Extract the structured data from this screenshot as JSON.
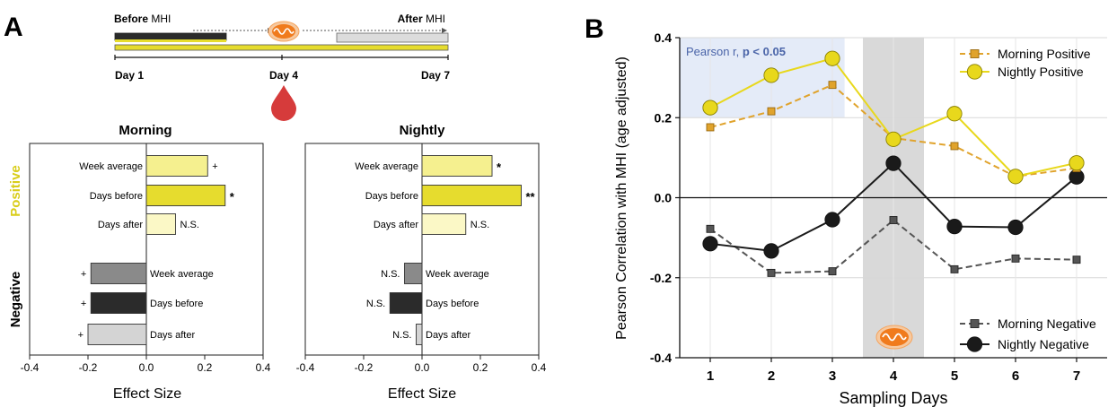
{
  "panel_a": {
    "label": "A",
    "timeline": {
      "before_word": "Before",
      "before_suffix": " MHI",
      "after_word": "After",
      "after_suffix": " MHI",
      "day_labels": [
        "Day 1",
        "Day 4",
        "Day 7"
      ]
    }
  },
  "panel_b": {
    "label": "B"
  },
  "colors": {
    "yellow_bright": "#e6dc2e",
    "yellow_mid": "#f5f08f",
    "yellow_pale": "#fbf8c6",
    "gray_mid": "#8a8a8a",
    "gray_dark": "#2b2b2b",
    "gray_light": "#d4d4d4",
    "morning_positive": "#e0a32c",
    "nightly_positive": "#e8d81c",
    "morning_negative": "#555555",
    "nightly_negative": "#1a1a1a",
    "highlight": "#e4ebf8",
    "day4_band": "#d9d9d9",
    "pearson_text": "#4a64a8",
    "positive_label": "#d9cd1a",
    "mito_orange": "#f07b1d",
    "drop_red": "#d63b3b"
  },
  "chart_data": [
    {
      "type": "bar",
      "orientation": "horizontal",
      "title": "Morning",
      "xlabel": "Effect Size",
      "xlim": [
        -0.4,
        0.4
      ],
      "xticks": [
        -0.4,
        -0.2,
        0.0,
        0.2,
        0.4
      ],
      "group_labels": {
        "positive": "Positive",
        "negative": "Negative"
      },
      "bars": [
        {
          "label": "Week average",
          "group": "positive",
          "value": 0.21,
          "sig": "+",
          "color_key": "yellow_mid"
        },
        {
          "label": "Days before",
          "group": "positive",
          "value": 0.27,
          "sig": "*",
          "color_key": "yellow_bright"
        },
        {
          "label": "Days after",
          "group": "positive",
          "value": 0.1,
          "sig": "N.S.",
          "color_key": "yellow_pale"
        },
        {
          "label": "Week average",
          "group": "negative",
          "value": -0.19,
          "sig": "+",
          "color_key": "gray_mid"
        },
        {
          "label": "Days before",
          "group": "negative",
          "value": -0.19,
          "sig": "+",
          "color_key": "gray_dark"
        },
        {
          "label": "Days after",
          "group": "negative",
          "value": -0.2,
          "sig": "+",
          "color_key": "gray_light"
        }
      ]
    },
    {
      "type": "bar",
      "orientation": "horizontal",
      "title": "Nightly",
      "xlabel": "Effect Size",
      "xlim": [
        -0.4,
        0.4
      ],
      "xticks": [
        -0.4,
        -0.2,
        0.0,
        0.2,
        0.4
      ],
      "bars": [
        {
          "label": "Week average",
          "group": "positive",
          "value": 0.24,
          "sig": "*",
          "color_key": "yellow_mid"
        },
        {
          "label": "Days before",
          "group": "positive",
          "value": 0.34,
          "sig": "**",
          "color_key": "yellow_bright"
        },
        {
          "label": "Days after",
          "group": "positive",
          "value": 0.15,
          "sig": "N.S.",
          "color_key": "yellow_pale"
        },
        {
          "label": "Week average",
          "group": "negative",
          "value": -0.06,
          "sig": "N.S.",
          "color_key": "gray_mid"
        },
        {
          "label": "Days before",
          "group": "negative",
          "value": -0.11,
          "sig": "N.S.",
          "color_key": "gray_dark"
        },
        {
          "label": "Days after",
          "group": "negative",
          "value": -0.02,
          "sig": "N.S.",
          "color_key": "gray_light"
        }
      ]
    },
    {
      "type": "line",
      "xlabel": "Sampling Days",
      "ylabel": "Pearson Correlation with MHI (age adjusted)",
      "x": [
        1,
        2,
        3,
        4,
        5,
        6,
        7
      ],
      "xlim": [
        0.5,
        7.5
      ],
      "ylim": [
        -0.4,
        0.4
      ],
      "yticks": [
        -0.4,
        -0.2,
        0.0,
        0.2,
        0.4
      ],
      "annotation": {
        "prefix": "Pearson r, ",
        "emphasis": "p < 0.05",
        "y_from": 0.2,
        "x_to": 3.2
      },
      "shaded_day": 4,
      "series": [
        {
          "name": "Morning Positive",
          "values": [
            0.176,
            0.216,
            0.282,
            0.149,
            0.129,
            0.053,
            0.074
          ],
          "color_key": "morning_positive",
          "marker": "square",
          "dashed": true
        },
        {
          "name": "Nightly Positive",
          "values": [
            0.225,
            0.306,
            0.348,
            0.146,
            0.21,
            0.053,
            0.087
          ],
          "color_key": "nightly_positive",
          "marker": "circle",
          "dashed": false
        },
        {
          "name": "Morning Negative",
          "values": [
            -0.078,
            -0.188,
            -0.184,
            -0.056,
            -0.179,
            -0.152,
            -0.155
          ],
          "color_key": "morning_negative",
          "marker": "square",
          "dashed": true
        },
        {
          "name": "Nightly Negative",
          "values": [
            -0.115,
            -0.133,
            -0.055,
            0.086,
            -0.072,
            -0.074,
            0.052
          ],
          "color_key": "nightly_negative",
          "marker": "circle",
          "dashed": false
        }
      ]
    }
  ]
}
